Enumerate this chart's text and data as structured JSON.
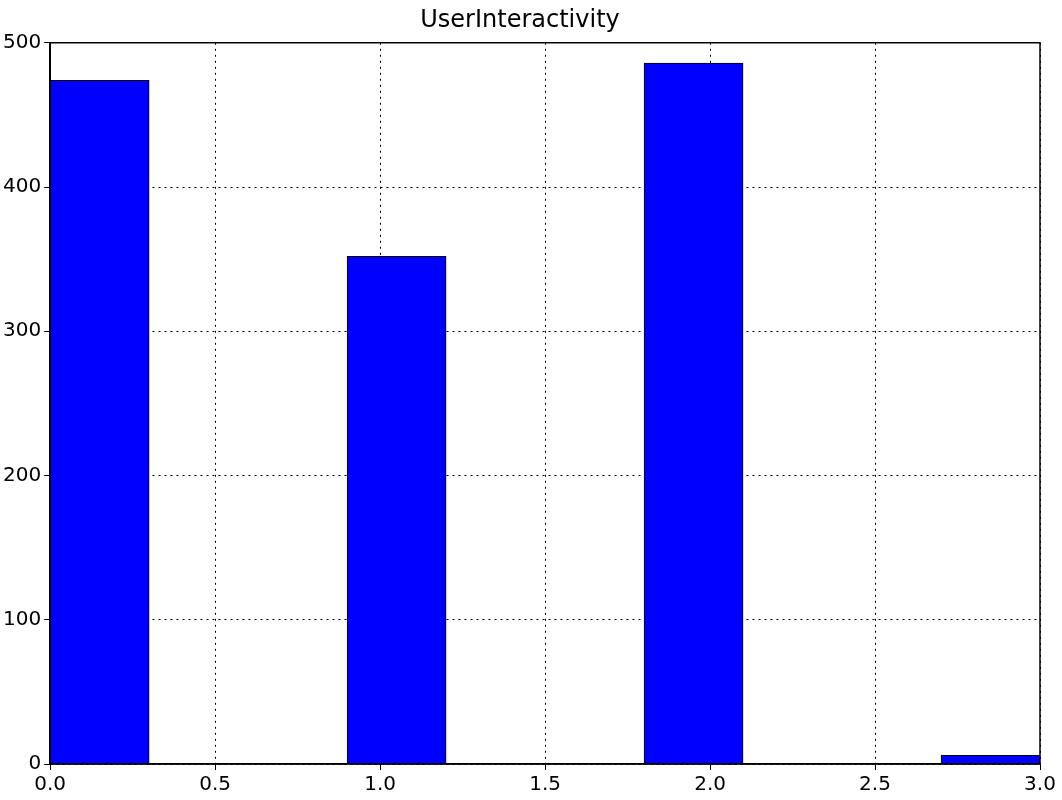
{
  "chart_data": {
    "type": "histogram",
    "title": "UserInteractivity",
    "bins": [
      0,
      0.3,
      0.6,
      0.9,
      1.2,
      1.5,
      1.8,
      2.1,
      2.4,
      2.7,
      3.0
    ],
    "values": [
      474,
      0,
      0,
      352,
      0,
      0,
      486,
      0,
      0,
      6
    ],
    "color": "#0000ff",
    "xlim": [
      0,
      3
    ],
    "xticks": [
      {
        "value": 0,
        "label": "0.0"
      },
      {
        "value": 0.5,
        "label": "0.5"
      },
      {
        "value": 1,
        "label": "1.0"
      },
      {
        "value": 1.5,
        "label": "1.5"
      },
      {
        "value": 2,
        "label": "2.0"
      },
      {
        "value": 2.5,
        "label": "2.5"
      },
      {
        "value": 3,
        "label": "3.0"
      }
    ],
    "ylim": [
      0,
      500
    ],
    "yticks": [
      0,
      100,
      200,
      300,
      400,
      500
    ],
    "grid": true,
    "legend": false
  }
}
